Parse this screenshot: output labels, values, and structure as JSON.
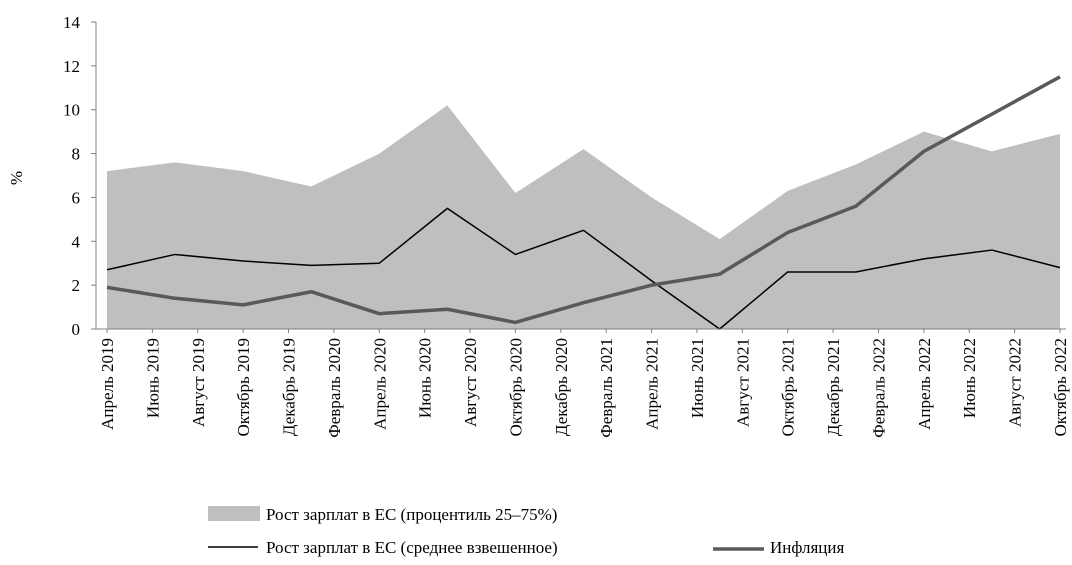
{
  "chart_data": {
    "type": "line",
    "y_label": "%",
    "x": [
      "2019-04",
      "2019-07",
      "2019-10",
      "2020-01",
      "2020-04",
      "2020-07",
      "2020-10",
      "2021-01",
      "2021-04",
      "2021-07",
      "2021-10",
      "2022-01",
      "2022-04",
      "2022-07",
      "2022-10"
    ],
    "xlim": [
      "2019-04",
      "2022-10"
    ],
    "xticks": [
      {
        "value": "2019-04",
        "label": "Апрель 2019"
      },
      {
        "value": "2019-06",
        "label": "Июнь 2019"
      },
      {
        "value": "2019-08",
        "label": "Август 2019"
      },
      {
        "value": "2019-10",
        "label": "Октябрь 2019"
      },
      {
        "value": "2019-12",
        "label": "Декабрь 2019"
      },
      {
        "value": "2020-02",
        "label": "Февраль 2020"
      },
      {
        "value": "2020-04",
        "label": "Апрель 2020"
      },
      {
        "value": "2020-06",
        "label": "Июнь 2020"
      },
      {
        "value": "2020-08",
        "label": "Август 2020"
      },
      {
        "value": "2020-10",
        "label": "Октябрь 2020"
      },
      {
        "value": "2020-12",
        "label": "Декабрь 2020"
      },
      {
        "value": "2021-02",
        "label": "Февраль 2021"
      },
      {
        "value": "2021-04",
        "label": "Апрель 2021"
      },
      {
        "value": "2021-06",
        "label": "Июнь 2021"
      },
      {
        "value": "2021-08",
        "label": "Август 2021"
      },
      {
        "value": "2021-10",
        "label": "Октябрь 2021"
      },
      {
        "value": "2021-12",
        "label": "Декабрь 2021"
      },
      {
        "value": "2022-02",
        "label": "Февраль 2022"
      },
      {
        "value": "2022-04",
        "label": "Апрель 2022"
      },
      {
        "value": "2022-06",
        "label": "Июнь 2022"
      },
      {
        "value": "2022-08",
        "label": "Август 2022"
      },
      {
        "value": "2022-10",
        "label": "Октябрь 2022"
      }
    ],
    "ylim": [
      0,
      14
    ],
    "yticks": [
      0,
      2,
      4,
      6,
      8,
      10,
      12,
      14
    ],
    "grid": false,
    "series": [
      {
        "name": "Рост зарплат в ЕС (процентиль 25–75%)",
        "type": "area",
        "color": "#bfbfbf",
        "values": [
          7.2,
          7.6,
          7.2,
          6.5,
          8.0,
          10.2,
          6.2,
          8.2,
          6.0,
          4.1,
          6.3,
          7.5,
          9.0,
          8.1,
          8.9
        ]
      },
      {
        "name": "Рост зарплат в ЕС (среднее взвешенное)",
        "type": "line",
        "color": "#000000",
        "values": [
          2.7,
          3.4,
          3.1,
          2.9,
          3.0,
          5.5,
          3.4,
          4.5,
          2.2,
          0,
          2.6,
          2.6,
          3.2,
          3.6,
          2.8
        ]
      },
      {
        "name": "Инфляция",
        "type": "line",
        "color": "#595959",
        "values": [
          1.9,
          1.4,
          1.1,
          1.7,
          0.7,
          0.9,
          0.3,
          1.2,
          2.0,
          2.5,
          4.4,
          5.6,
          8.1,
          9.8,
          11.5
        ]
      }
    ]
  }
}
